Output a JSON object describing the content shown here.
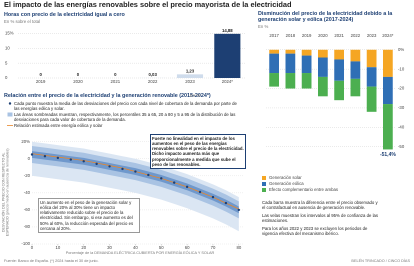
{
  "title": "El impacto de las energías renovables sobre el precio mayorista de la electricidad",
  "chart_data": [
    {
      "type": "bar",
      "title": "Horas con precio de la electricidad igual a cero",
      "subtitle": "En % sobre el total",
      "categories": [
        "2019",
        "2020",
        "2021",
        "2022",
        "2023",
        "2024*"
      ],
      "values": [
        0,
        0,
        0,
        0.03,
        1.23,
        14.88
      ],
      "value_labels": [
        "0",
        "0",
        "0",
        "0,03",
        "1,23",
        "14,88"
      ],
      "colors": [
        "#cfdcec",
        "#cfdcec",
        "#cfdcec",
        "#cfdcec",
        "#cfdcec",
        "#1d3f73"
      ],
      "ylim": [
        0,
        15.5
      ],
      "yticks": [
        0,
        5,
        10,
        {
          "value": 15,
          "label": "15%"
        }
      ],
      "grid": true
    },
    {
      "type": "stacked_bar",
      "title": "Disminución del precio de la electricidad debido a la generación solar y eólica (2017-2024)",
      "subtitle": "En %",
      "categories": [
        "2017",
        "2018",
        "2019",
        "2020",
        "2021",
        "2022",
        "2023",
        "2024*"
      ],
      "series": [
        {
          "name": "Generación solar",
          "color": "#f5a623",
          "values": [
            -2,
            -2,
            -3,
            -4,
            -5,
            -6,
            -9,
            -14
          ]
        },
        {
          "name": "Generación eólica",
          "color": "#2f6fb5",
          "values": [
            -10,
            -10,
            -9,
            -10,
            -11,
            -9,
            -10,
            -14
          ]
        },
        {
          "name": "Efecto complementario entre ambas",
          "color": "#4caf50",
          "values": [
            -7,
            -8,
            -8,
            -10,
            -10,
            -9,
            -13,
            -23.4
          ]
        }
      ],
      "ylim": [
        -62,
        4
      ],
      "yticks": [
        {
          "value": 0,
          "label": "0%"
        },
        -10,
        -20,
        -30,
        -40,
        -50
      ],
      "grid": true,
      "annotation": "-51,4%",
      "notes": [
        "Cada barra muestra la diferencia entre el precio observado y el contrafactual en ausencia de generación renovable.",
        "Las velas muestran los intervalos al 95% de confianza de las estimaciones.",
        "Para los años 2022 y 2023 se excluyen los periodos de vigencia efectiva del mecanismo ibérico."
      ]
    },
    {
      "type": "line",
      "title": "Relación entre el precio de la electricidad y la generación renovable (2015-2024*)",
      "subtitle": "En %",
      "x": [
        0,
        5,
        10,
        15,
        20,
        25,
        30,
        35,
        40,
        45,
        50,
        55,
        60,
        65,
        70,
        75,
        80
      ],
      "series": [
        {
          "name": "Cada punto muestra la media de las desviaciones del precio con cada nivel de cobertura de la demanda por parte de las energías eólica y solar.",
          "color": "#1d3f73",
          "values": [
            5,
            3,
            1,
            -1,
            -3,
            -6,
            -9,
            -12,
            -15,
            -19,
            -23,
            -28,
            -33,
            -39,
            -45,
            -52,
            -60
          ]
        },
        {
          "name": "Relación estimada entre energía eólica y solar",
          "color": "#e8862a",
          "values": [
            6,
            4,
            2,
            0,
            -2,
            -5,
            -8,
            -11,
            -15,
            -19,
            -23,
            -28,
            -33,
            -39,
            -45,
            -52,
            -59
          ]
        }
      ],
      "band_note": "Las áreas sombreadas muestran, respectivamente, los percentiles 35 a 65, 20 a 80 y 5 a 95 de la distribución de las desviaciones para cada valor de cobertura de la demanda.",
      "bands": [
        {
          "color": "#dbe6f3",
          "lower": [
            -20,
            -22,
            -24,
            -26,
            -28,
            -31,
            -34,
            -37,
            -40,
            -44,
            -48,
            -53,
            -58,
            -64,
            -70,
            -77,
            -85
          ],
          "upper": [
            20,
            18,
            16,
            14,
            12,
            9,
            6,
            3,
            0,
            -4,
            -8,
            -13,
            -18,
            -24,
            -30,
            -37,
            -45
          ]
        },
        {
          "color": "#a9c3e3",
          "lower": [
            -5,
            -7,
            -9,
            -11,
            -13,
            -16,
            -19,
            -22,
            -25,
            -29,
            -33,
            -38,
            -43,
            -49,
            -55,
            -62,
            -70
          ],
          "upper": [
            15,
            13,
            11,
            9,
            7,
            4,
            1,
            -2,
            -5,
            -9,
            -13,
            -18,
            -23,
            -29,
            -35,
            -42,
            -50
          ]
        },
        {
          "color": "#6f98cc",
          "lower": [
            1,
            -1,
            -3,
            -5,
            -7,
            -10,
            -13,
            -16,
            -19,
            -23,
            -27,
            -32,
            -37,
            -43,
            -49,
            -56,
            -64
          ],
          "upper": [
            9,
            7,
            5,
            3,
            1,
            -2,
            -5,
            -8,
            -11,
            -15,
            -19,
            -24,
            -29,
            -35,
            -41,
            -48,
            -56
          ]
        }
      ],
      "annotations": [
        "Fuerte no linealidad en el impacto de los aumentos en el peso de las energías renovables sobre el precio de la electricidad. Dicho impacto aumenta más que proporcionalmente a medida que sube el peso de las renovables.",
        "Un aumento en el peso de la generación solar y eólica del 20% al 30% tiene un impacto relativamente reducido sobre el precio de la electricidad. Sin embargo, si ese aumento es del 50% al 60%, la reducción esperada del precio es cercana al 20%."
      ],
      "xlabel": "Porcentaje de la DEMANDA ELÉCTRICA CUBIERTA POR ENERGÍA EÓLICA Y SOLAR",
      "ylabel": "DESVIACIÓN DEL PRECIO CON RESPECTO AL ESPERADO (precio medio en ausencia de renovables)",
      "xlim": [
        0,
        82
      ],
      "xticks": [
        0,
        10,
        20,
        30,
        40,
        50,
        60,
        70,
        80
      ],
      "ylim": [
        -100,
        22
      ],
      "yticks": [
        {
          "value": 20,
          "label": "20%"
        },
        0,
        -20,
        -40,
        -60,
        -80,
        -100
      ],
      "grid": true
    }
  ],
  "source": "Fuente: Banco de España. (*) 2024 hasta el 30 de junio.",
  "credit": "BELÉN TRINCADO / CINCO DÍAS"
}
